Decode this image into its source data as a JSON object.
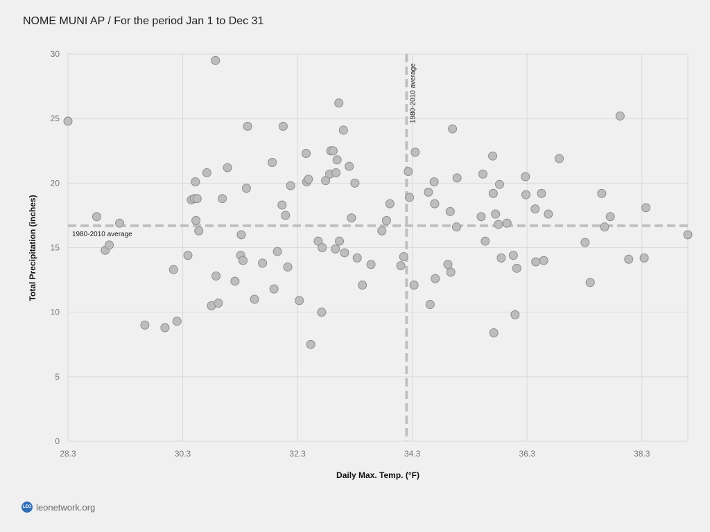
{
  "title": "NOME MUNI AP / For the period Jan 1 to Dec 31",
  "footer": {
    "logo_text": "LEO",
    "site": "leonetwork.org"
  },
  "colors": {
    "background": "#f0f0f0",
    "grid": "#d9d9d9",
    "point_fill": "#bdbdbd",
    "point_stroke": "#8c8c8c",
    "reference_line": "#c0c0c0"
  },
  "chart_data": {
    "type": "scatter",
    "xlabel": "Daily Max. Temp. (°F)",
    "ylabel": "Total Precipitation (inches)",
    "xlim": [
      28.3,
      39.1
    ],
    "ylim": [
      0,
      30
    ],
    "xticks": [
      "28.3",
      "30.3",
      "32.3",
      "34.3",
      "36.3",
      "38.3"
    ],
    "yticks": [
      "0",
      "5",
      "10",
      "15",
      "20",
      "25",
      "30"
    ],
    "grid": true,
    "reference_lines": [
      {
        "axis": "x",
        "value": 34.2,
        "label": "1980-2010 average"
      },
      {
        "axis": "y",
        "value": 16.7,
        "label": "1980-2010 average"
      }
    ],
    "points": [
      [
        28.3,
        24.8
      ],
      [
        28.8,
        17.4
      ],
      [
        28.95,
        14.8
      ],
      [
        29.02,
        15.2
      ],
      [
        29.2,
        16.9
      ],
      [
        29.64,
        9.0
      ],
      [
        29.99,
        8.8
      ],
      [
        30.14,
        13.3
      ],
      [
        30.2,
        9.3
      ],
      [
        30.39,
        14.4
      ],
      [
        30.45,
        18.7
      ],
      [
        30.5,
        18.8
      ],
      [
        30.52,
        20.1
      ],
      [
        30.53,
        17.1
      ],
      [
        30.55,
        18.8
      ],
      [
        30.58,
        16.3
      ],
      [
        30.72,
        20.8
      ],
      [
        30.8,
        10.5
      ],
      [
        30.87,
        29.5
      ],
      [
        30.88,
        12.8
      ],
      [
        30.92,
        10.7
      ],
      [
        30.99,
        18.8
      ],
      [
        31.08,
        21.2
      ],
      [
        31.21,
        12.4
      ],
      [
        31.31,
        14.4
      ],
      [
        31.32,
        16.0
      ],
      [
        31.35,
        14.0
      ],
      [
        31.41,
        19.6
      ],
      [
        31.43,
        24.4
      ],
      [
        31.55,
        11.0
      ],
      [
        31.69,
        13.8
      ],
      [
        31.86,
        21.6
      ],
      [
        31.89,
        11.8
      ],
      [
        31.95,
        14.7
      ],
      [
        32.03,
        18.3
      ],
      [
        32.05,
        24.4
      ],
      [
        32.09,
        17.5
      ],
      [
        32.13,
        13.5
      ],
      [
        32.18,
        19.8
      ],
      [
        32.33,
        10.9
      ],
      [
        32.45,
        22.3
      ],
      [
        32.46,
        20.1
      ],
      [
        32.49,
        20.3
      ],
      [
        32.53,
        7.5
      ],
      [
        32.66,
        15.5
      ],
      [
        32.72,
        10.0
      ],
      [
        32.73,
        15.0
      ],
      [
        32.79,
        20.2
      ],
      [
        32.86,
        20.7
      ],
      [
        32.88,
        22.5
      ],
      [
        32.92,
        22.5
      ],
      [
        32.96,
        14.9
      ],
      [
        32.97,
        20.8
      ],
      [
        32.99,
        21.8
      ],
      [
        33.02,
        26.2
      ],
      [
        33.03,
        15.5
      ],
      [
        33.1,
        24.1
      ],
      [
        33.12,
        14.6
      ],
      [
        33.2,
        21.3
      ],
      [
        33.24,
        17.3
      ],
      [
        33.3,
        20.0
      ],
      [
        33.34,
        14.2
      ],
      [
        33.43,
        12.1
      ],
      [
        33.58,
        13.7
      ],
      [
        33.77,
        16.3
      ],
      [
        33.85,
        17.1
      ],
      [
        33.91,
        18.4
      ],
      [
        34.1,
        13.6
      ],
      [
        34.15,
        14.3
      ],
      [
        34.23,
        20.9
      ],
      [
        34.25,
        18.9
      ],
      [
        34.33,
        12.1
      ],
      [
        34.35,
        22.4
      ],
      [
        34.58,
        19.3
      ],
      [
        34.61,
        10.6
      ],
      [
        34.68,
        20.1
      ],
      [
        34.69,
        18.4
      ],
      [
        34.7,
        12.6
      ],
      [
        34.92,
        13.7
      ],
      [
        34.96,
        17.8
      ],
      [
        34.97,
        13.1
      ],
      [
        35.0,
        24.2
      ],
      [
        35.08,
        20.4
      ],
      [
        35.07,
        16.6
      ],
      [
        35.5,
        17.4
      ],
      [
        35.53,
        20.7
      ],
      [
        35.57,
        15.5
      ],
      [
        35.7,
        22.1
      ],
      [
        35.71,
        19.2
      ],
      [
        35.72,
        8.4
      ],
      [
        35.75,
        17.6
      ],
      [
        35.8,
        16.8
      ],
      [
        35.82,
        19.9
      ],
      [
        35.85,
        14.2
      ],
      [
        35.95,
        16.9
      ],
      [
        36.06,
        14.4
      ],
      [
        36.09,
        9.8
      ],
      [
        36.12,
        13.4
      ],
      [
        36.27,
        20.5
      ],
      [
        36.28,
        19.1
      ],
      [
        36.44,
        18.0
      ],
      [
        36.45,
        13.9
      ],
      [
        36.55,
        19.2
      ],
      [
        36.59,
        14.0
      ],
      [
        36.67,
        17.6
      ],
      [
        36.86,
        21.9
      ],
      [
        37.31,
        15.4
      ],
      [
        37.4,
        12.3
      ],
      [
        37.6,
        19.2
      ],
      [
        37.65,
        16.6
      ],
      [
        37.75,
        17.4
      ],
      [
        37.92,
        25.2
      ],
      [
        38.07,
        14.1
      ],
      [
        38.34,
        14.2
      ],
      [
        38.37,
        18.1
      ],
      [
        39.1,
        16.0
      ]
    ]
  }
}
